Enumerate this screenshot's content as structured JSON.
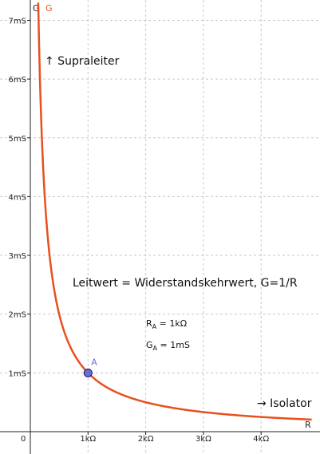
{
  "chart_data": {
    "type": "line",
    "title": "",
    "xlabel": "R",
    "ylabel": "G",
    "xlim": [
      -0.14,
      4.9
    ],
    "ylim": [
      -0.17,
      7.3
    ],
    "x_unit": "kΩ",
    "y_unit": "mS",
    "x_ticks": [
      {
        "value": 1,
        "label": "1kΩ"
      },
      {
        "value": 2,
        "label": "2kΩ"
      },
      {
        "value": 3,
        "label": "3kΩ"
      },
      {
        "value": 4,
        "label": "4kΩ"
      }
    ],
    "y_ticks": [
      {
        "value": 1,
        "label": "1mS"
      },
      {
        "value": 2,
        "label": "2mS"
      },
      {
        "value": 3,
        "label": "3mS"
      },
      {
        "value": 4,
        "label": "4mS"
      },
      {
        "value": 5,
        "label": "5mS"
      },
      {
        "value": 6,
        "label": "6mS"
      },
      {
        "value": 7,
        "label": "7mS"
      }
    ],
    "origin_label": "0",
    "grid": true,
    "series": [
      {
        "name": "G",
        "function": "G = 1/R",
        "color": "#e8501f",
        "x": [
          0.137,
          0.15,
          0.2,
          0.25,
          0.3,
          0.4,
          0.5,
          0.6,
          0.8,
          1,
          1.25,
          1.5,
          2,
          2.5,
          3,
          3.5,
          4,
          4.5,
          4.88
        ],
        "y": [
          7.3,
          6.667,
          5,
          4,
          3.333,
          2.5,
          2,
          1.667,
          1.25,
          1,
          0.8,
          0.667,
          0.5,
          0.4,
          0.333,
          0.286,
          0.25,
          0.222,
          0.205
        ]
      }
    ],
    "points": [
      {
        "name": "A",
        "x": 1,
        "y": 1,
        "color": "#6a6fd6"
      }
    ],
    "annotations": {
      "supraleiter": "↑ Supraleiter",
      "isolator": "→ Isolator",
      "main": "Leitwert = Widerstandskehrwert, G=1/R",
      "ra_main": "R",
      "ra_sub": "A",
      "ra_value": " = 1kΩ",
      "ga_main": "G",
      "ga_sub": "A",
      "ga_value": " = 1mS"
    }
  }
}
